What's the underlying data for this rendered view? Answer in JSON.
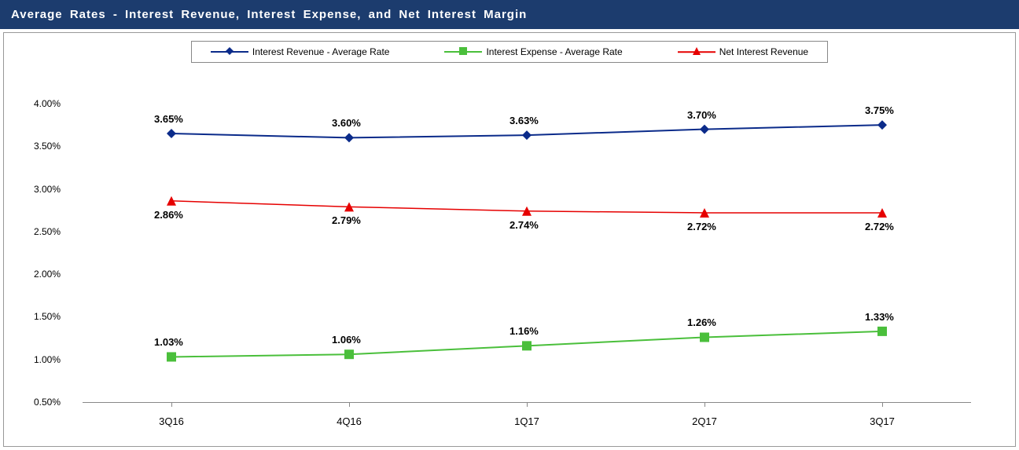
{
  "header": {
    "title": "Average Rates - Interest Revenue, Interest Expense, and Net Interest Margin",
    "background_color": "#1c3c6e",
    "text_color": "#ffffff"
  },
  "chart": {
    "type": "line",
    "background_color": "#ffffff",
    "border_color": "#999999",
    "categories": [
      "3Q16",
      "4Q16",
      "1Q17",
      "2Q17",
      "3Q17"
    ],
    "y_axis": {
      "min": 0.5,
      "max": 4.0,
      "tick_step": 0.5,
      "ticks": [
        "0.50%",
        "1.00%",
        "1.50%",
        "2.00%",
        "2.50%",
        "3.00%",
        "3.50%",
        "4.00%"
      ],
      "label_fontsize": 12
    },
    "x_axis": {
      "label_fontsize": 13
    },
    "axis_line_color": "#888888",
    "series": [
      {
        "name": "Interest Revenue - Average Rate",
        "color": "#0b2b8a",
        "marker": "diamond",
        "line_width": 2,
        "values": [
          3.65,
          3.6,
          3.63,
          3.7,
          3.75
        ],
        "labels": [
          "3.65%",
          "3.60%",
          "3.63%",
          "3.70%",
          "3.75%"
        ],
        "label_pos": "above"
      },
      {
        "name": "Interest Expense - Average Rate",
        "color": "#4abf3b",
        "marker": "square",
        "line_width": 2,
        "values": [
          1.03,
          1.06,
          1.16,
          1.26,
          1.33
        ],
        "labels": [
          "1.03%",
          "1.06%",
          "1.16%",
          "1.26%",
          "1.33%"
        ],
        "label_pos": "above"
      },
      {
        "name": "Net Interest Revenue",
        "color": "#e60000",
        "marker": "triangle",
        "line_width": 1.5,
        "values": [
          2.86,
          2.79,
          2.74,
          2.72,
          2.72
        ],
        "labels": [
          "2.86%",
          "2.79%",
          "2.74%",
          "2.72%",
          "2.72%"
        ],
        "label_pos": "below"
      }
    ],
    "legend": {
      "border_color": "#888888",
      "fontsize": 12,
      "position": "top-center"
    },
    "data_label_fontsize": 13,
    "data_label_fontweight": "bold"
  }
}
